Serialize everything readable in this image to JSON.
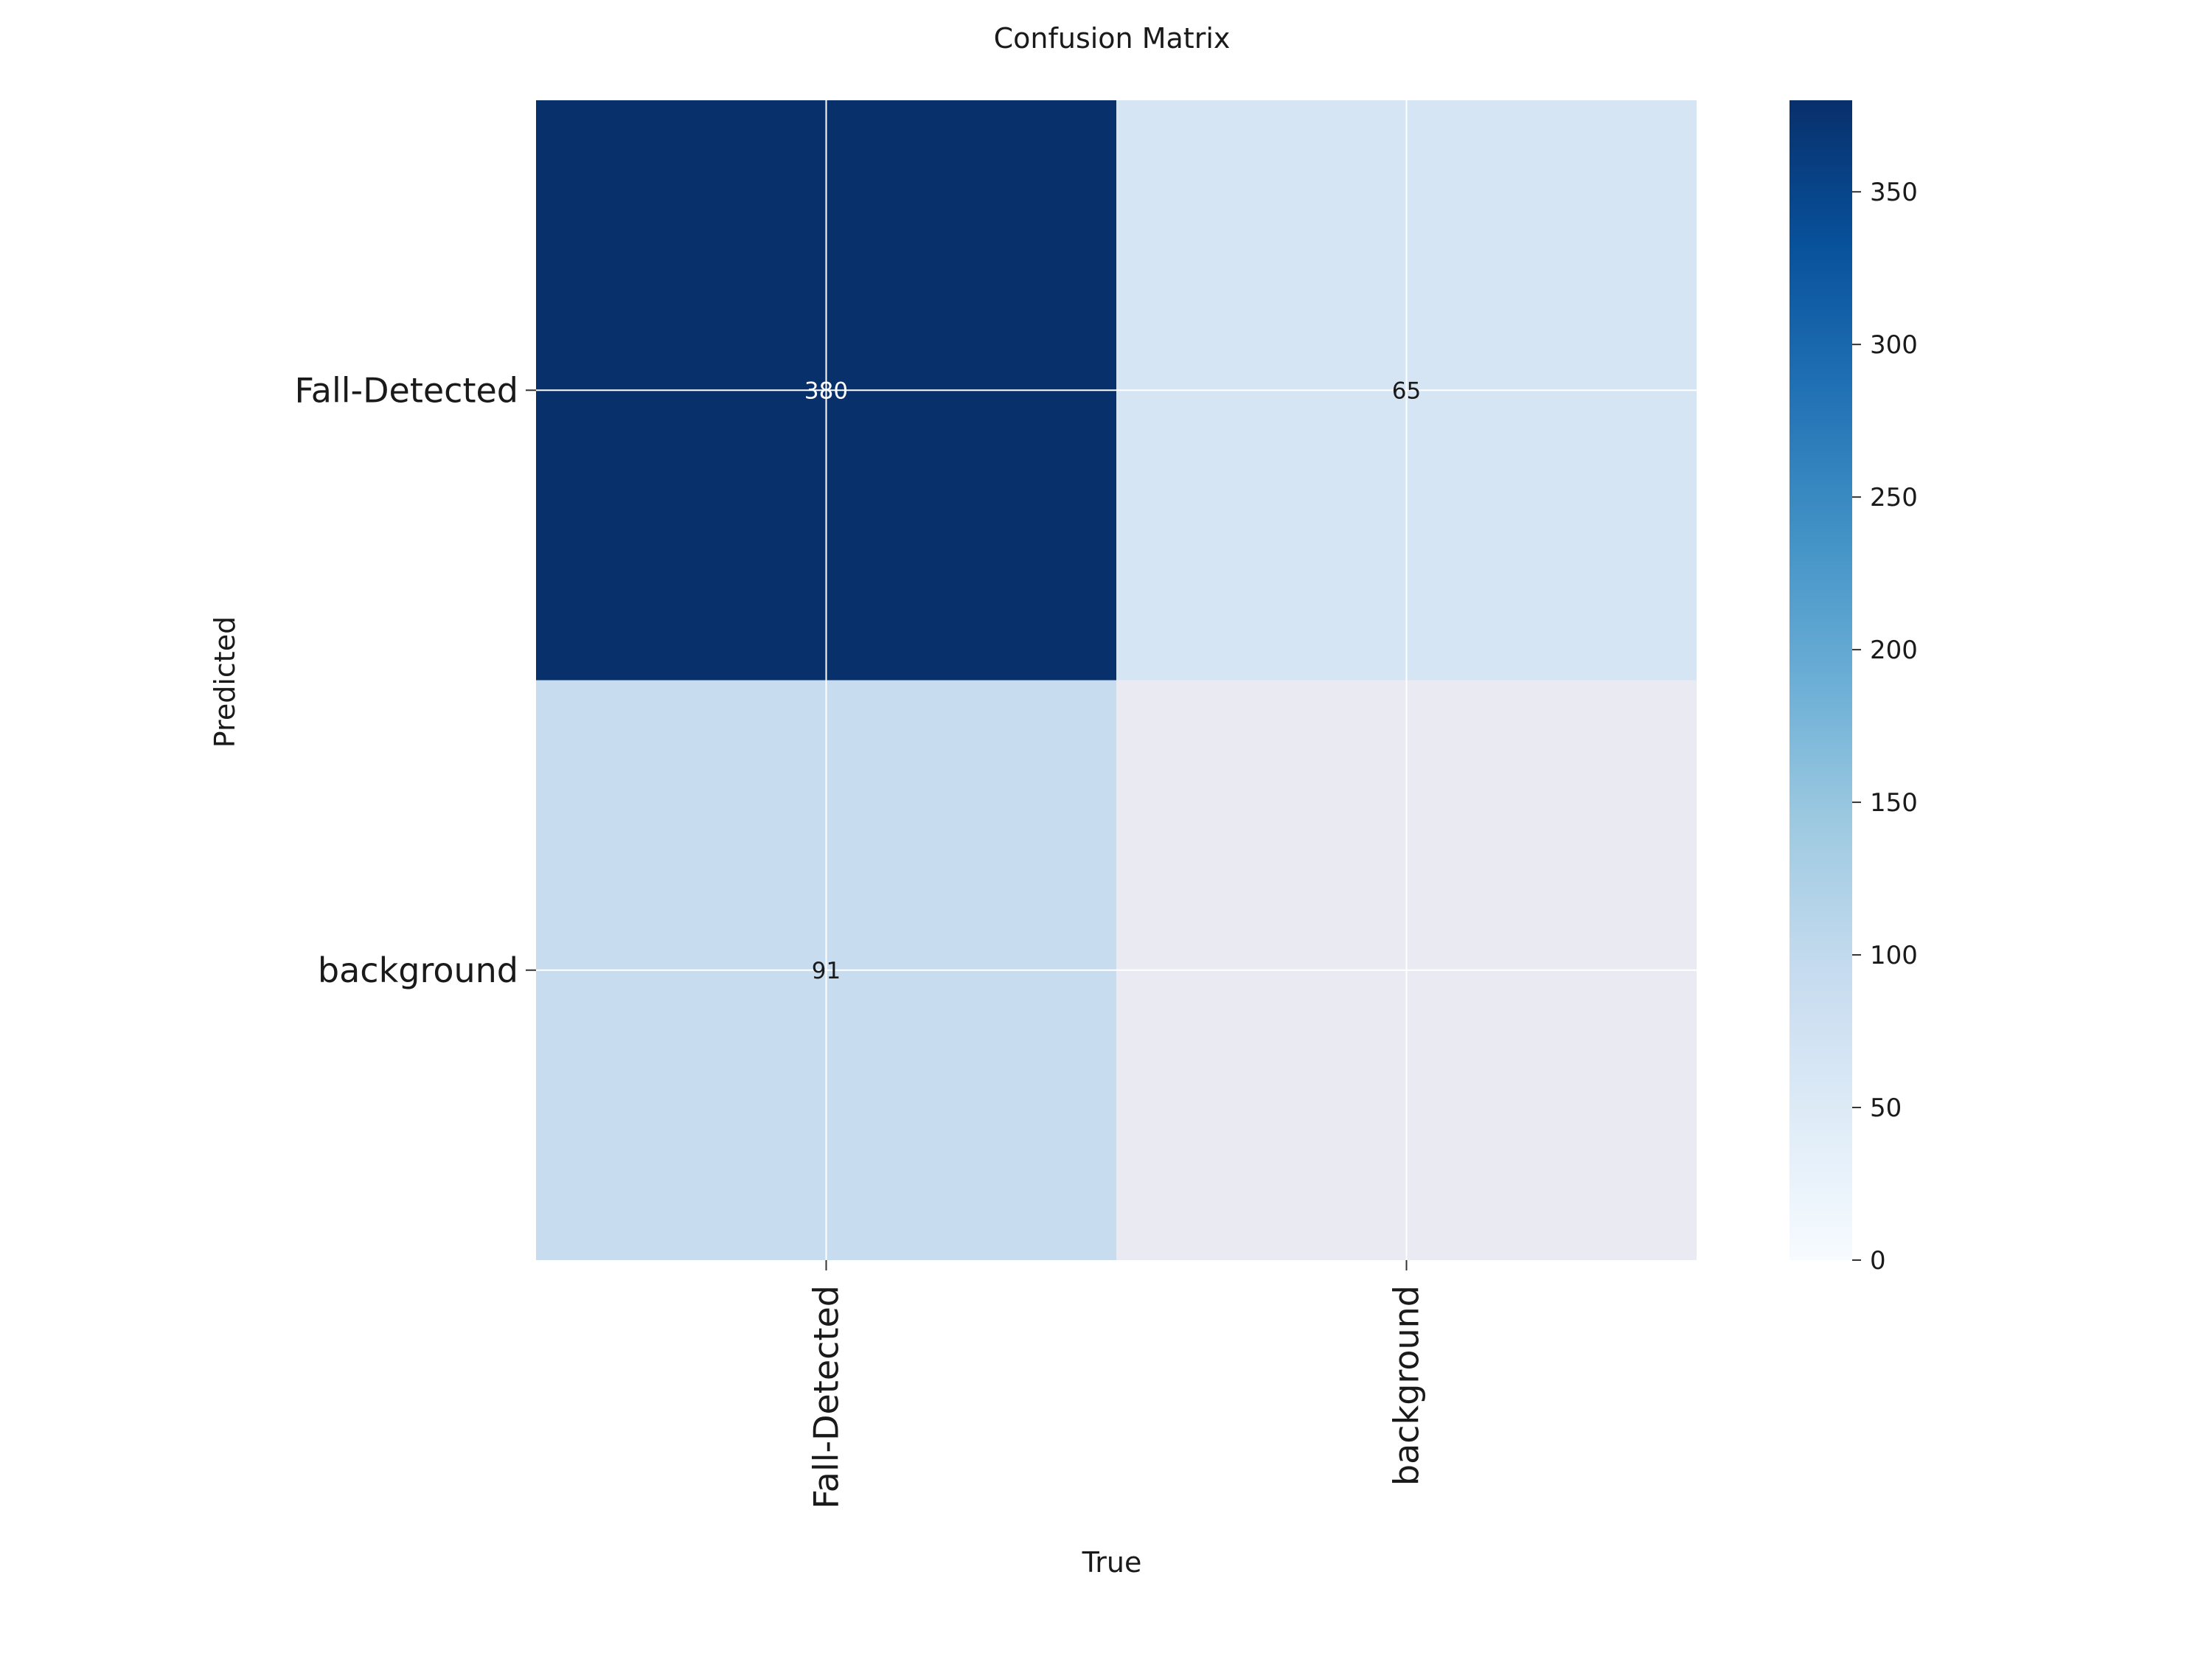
{
  "chart_data": {
    "type": "heatmap",
    "title": "Confusion Matrix",
    "xlabel": "True",
    "ylabel": "Predicted",
    "x_categories": [
      "Fall-Detected",
      "background"
    ],
    "y_categories": [
      "Fall-Detected",
      "background"
    ],
    "matrix": [
      [
        380,
        65
      ],
      [
        91,
        null
      ]
    ],
    "cell_labels": [
      [
        "380",
        "65"
      ],
      [
        "91",
        ""
      ]
    ],
    "colorbar": {
      "min": 0,
      "max": 380,
      "ticks": [
        0,
        50,
        100,
        150,
        200,
        250,
        300,
        350
      ],
      "colormap": "Blues"
    },
    "empty_cell_color": "#eaeaf2",
    "grid": true
  }
}
